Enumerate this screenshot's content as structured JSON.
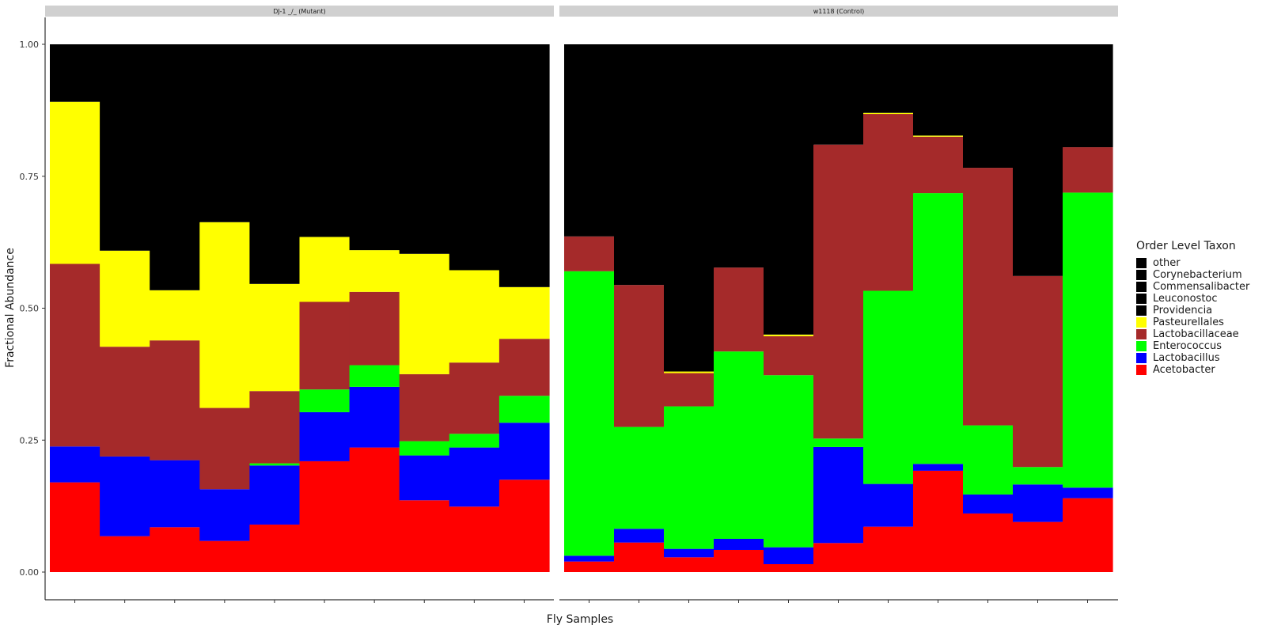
{
  "chart_data": {
    "type": "bar",
    "stacked": true,
    "xlabel": "Fly Samples",
    "ylabel": "Fractional Abundance",
    "ylim": [
      0,
      1
    ],
    "yticks": [
      "0.00",
      "0.25",
      "0.50",
      "0.75",
      "1.00"
    ],
    "grid": false,
    "legend": {
      "title": "Order Level Taxon",
      "position": "right",
      "entries": [
        {
          "name": "other",
          "color": "#000000"
        },
        {
          "name": "Corynebacterium",
          "color": "#000000"
        },
        {
          "name": "Commensalibacter",
          "color": "#000000"
        },
        {
          "name": "Leuconostoc",
          "color": "#000000"
        },
        {
          "name": "Providencia",
          "color": "#000000"
        },
        {
          "name": "Pasteurellales",
          "color": "#ffff00"
        },
        {
          "name": "Lactobacillaceae",
          "color": "#a52a2a"
        },
        {
          "name": "Enterococcus",
          "color": "#00ff00"
        },
        {
          "name": "Lactobacillus",
          "color": "#0000ff"
        },
        {
          "name": "Acetobacter",
          "color": "#ff0000"
        }
      ]
    },
    "stack_order": [
      "Acetobacter",
      "Lactobacillus",
      "Enterococcus",
      "Lactobacillaceae",
      "Pasteurellales",
      "other"
    ],
    "colors": {
      "Acetobacter": "#ff0000",
      "Lactobacillus": "#0000ff",
      "Enterococcus": "#00ff00",
      "Lactobacillaceae": "#a52a2a",
      "Pasteurellales": "#ffff00",
      "other": "#000000"
    },
    "panels": [
      {
        "title": "DJ-1 _/_ (Mutant)",
        "samples": 10,
        "series": [
          {
            "name": "Acetobacter",
            "values": [
              0.17,
              0.068,
              0.085,
              0.059,
              0.09,
              0.21,
              0.236,
              0.136,
              0.124,
              0.175
            ]
          },
          {
            "name": "Lactobacillus",
            "values": [
              0.068,
              0.151,
              0.127,
              0.098,
              0.112,
              0.093,
              0.115,
              0.085,
              0.112,
              0.108
            ]
          },
          {
            "name": "Enterococcus",
            "values": [
              0.0,
              0.0,
              0.0,
              0.0,
              0.004,
              0.043,
              0.041,
              0.027,
              0.026,
              0.051
            ]
          },
          {
            "name": "Lactobacillaceae",
            "values": [
              0.346,
              0.208,
              0.227,
              0.154,
              0.137,
              0.166,
              0.139,
              0.127,
              0.135,
              0.108
            ]
          },
          {
            "name": "Pasteurellales",
            "values": [
              0.307,
              0.182,
              0.095,
              0.352,
              0.203,
              0.123,
              0.079,
              0.228,
              0.175,
              0.098
            ]
          },
          {
            "name": "other",
            "values": [
              0.109,
              0.391,
              0.466,
              0.337,
              0.454,
              0.365,
              0.39,
              0.397,
              0.428,
              0.46
            ]
          }
        ]
      },
      {
        "title": "w1118 (Control)",
        "samples": 11,
        "series": [
          {
            "name": "Acetobacter",
            "values": [
              0.02,
              0.056,
              0.028,
              0.042,
              0.015,
              0.055,
              0.086,
              0.192,
              0.111,
              0.095,
              0.14
            ]
          },
          {
            "name": "Lactobacillus",
            "values": [
              0.011,
              0.026,
              0.016,
              0.021,
              0.032,
              0.182,
              0.081,
              0.013,
              0.036,
              0.071,
              0.02
            ]
          },
          {
            "name": "Enterococcus",
            "values": [
              0.539,
              0.193,
              0.27,
              0.355,
              0.326,
              0.016,
              0.366,
              0.513,
              0.131,
              0.033,
              0.559
            ]
          },
          {
            "name": "Lactobacillaceae",
            "values": [
              0.066,
              0.269,
              0.063,
              0.159,
              0.074,
              0.557,
              0.335,
              0.107,
              0.488,
              0.362,
              0.086
            ]
          },
          {
            "name": "Pasteurellales",
            "values": [
              0.0,
              0.0,
              0.003,
              0.0,
              0.003,
              0.0,
              0.002,
              0.002,
              0.0,
              0.0,
              0.0
            ]
          },
          {
            "name": "other",
            "values": [
              0.364,
              0.456,
              0.62,
              0.423,
              0.55,
              0.19,
              0.13,
              0.173,
              0.234,
              0.439,
              0.195
            ]
          }
        ]
      }
    ]
  }
}
